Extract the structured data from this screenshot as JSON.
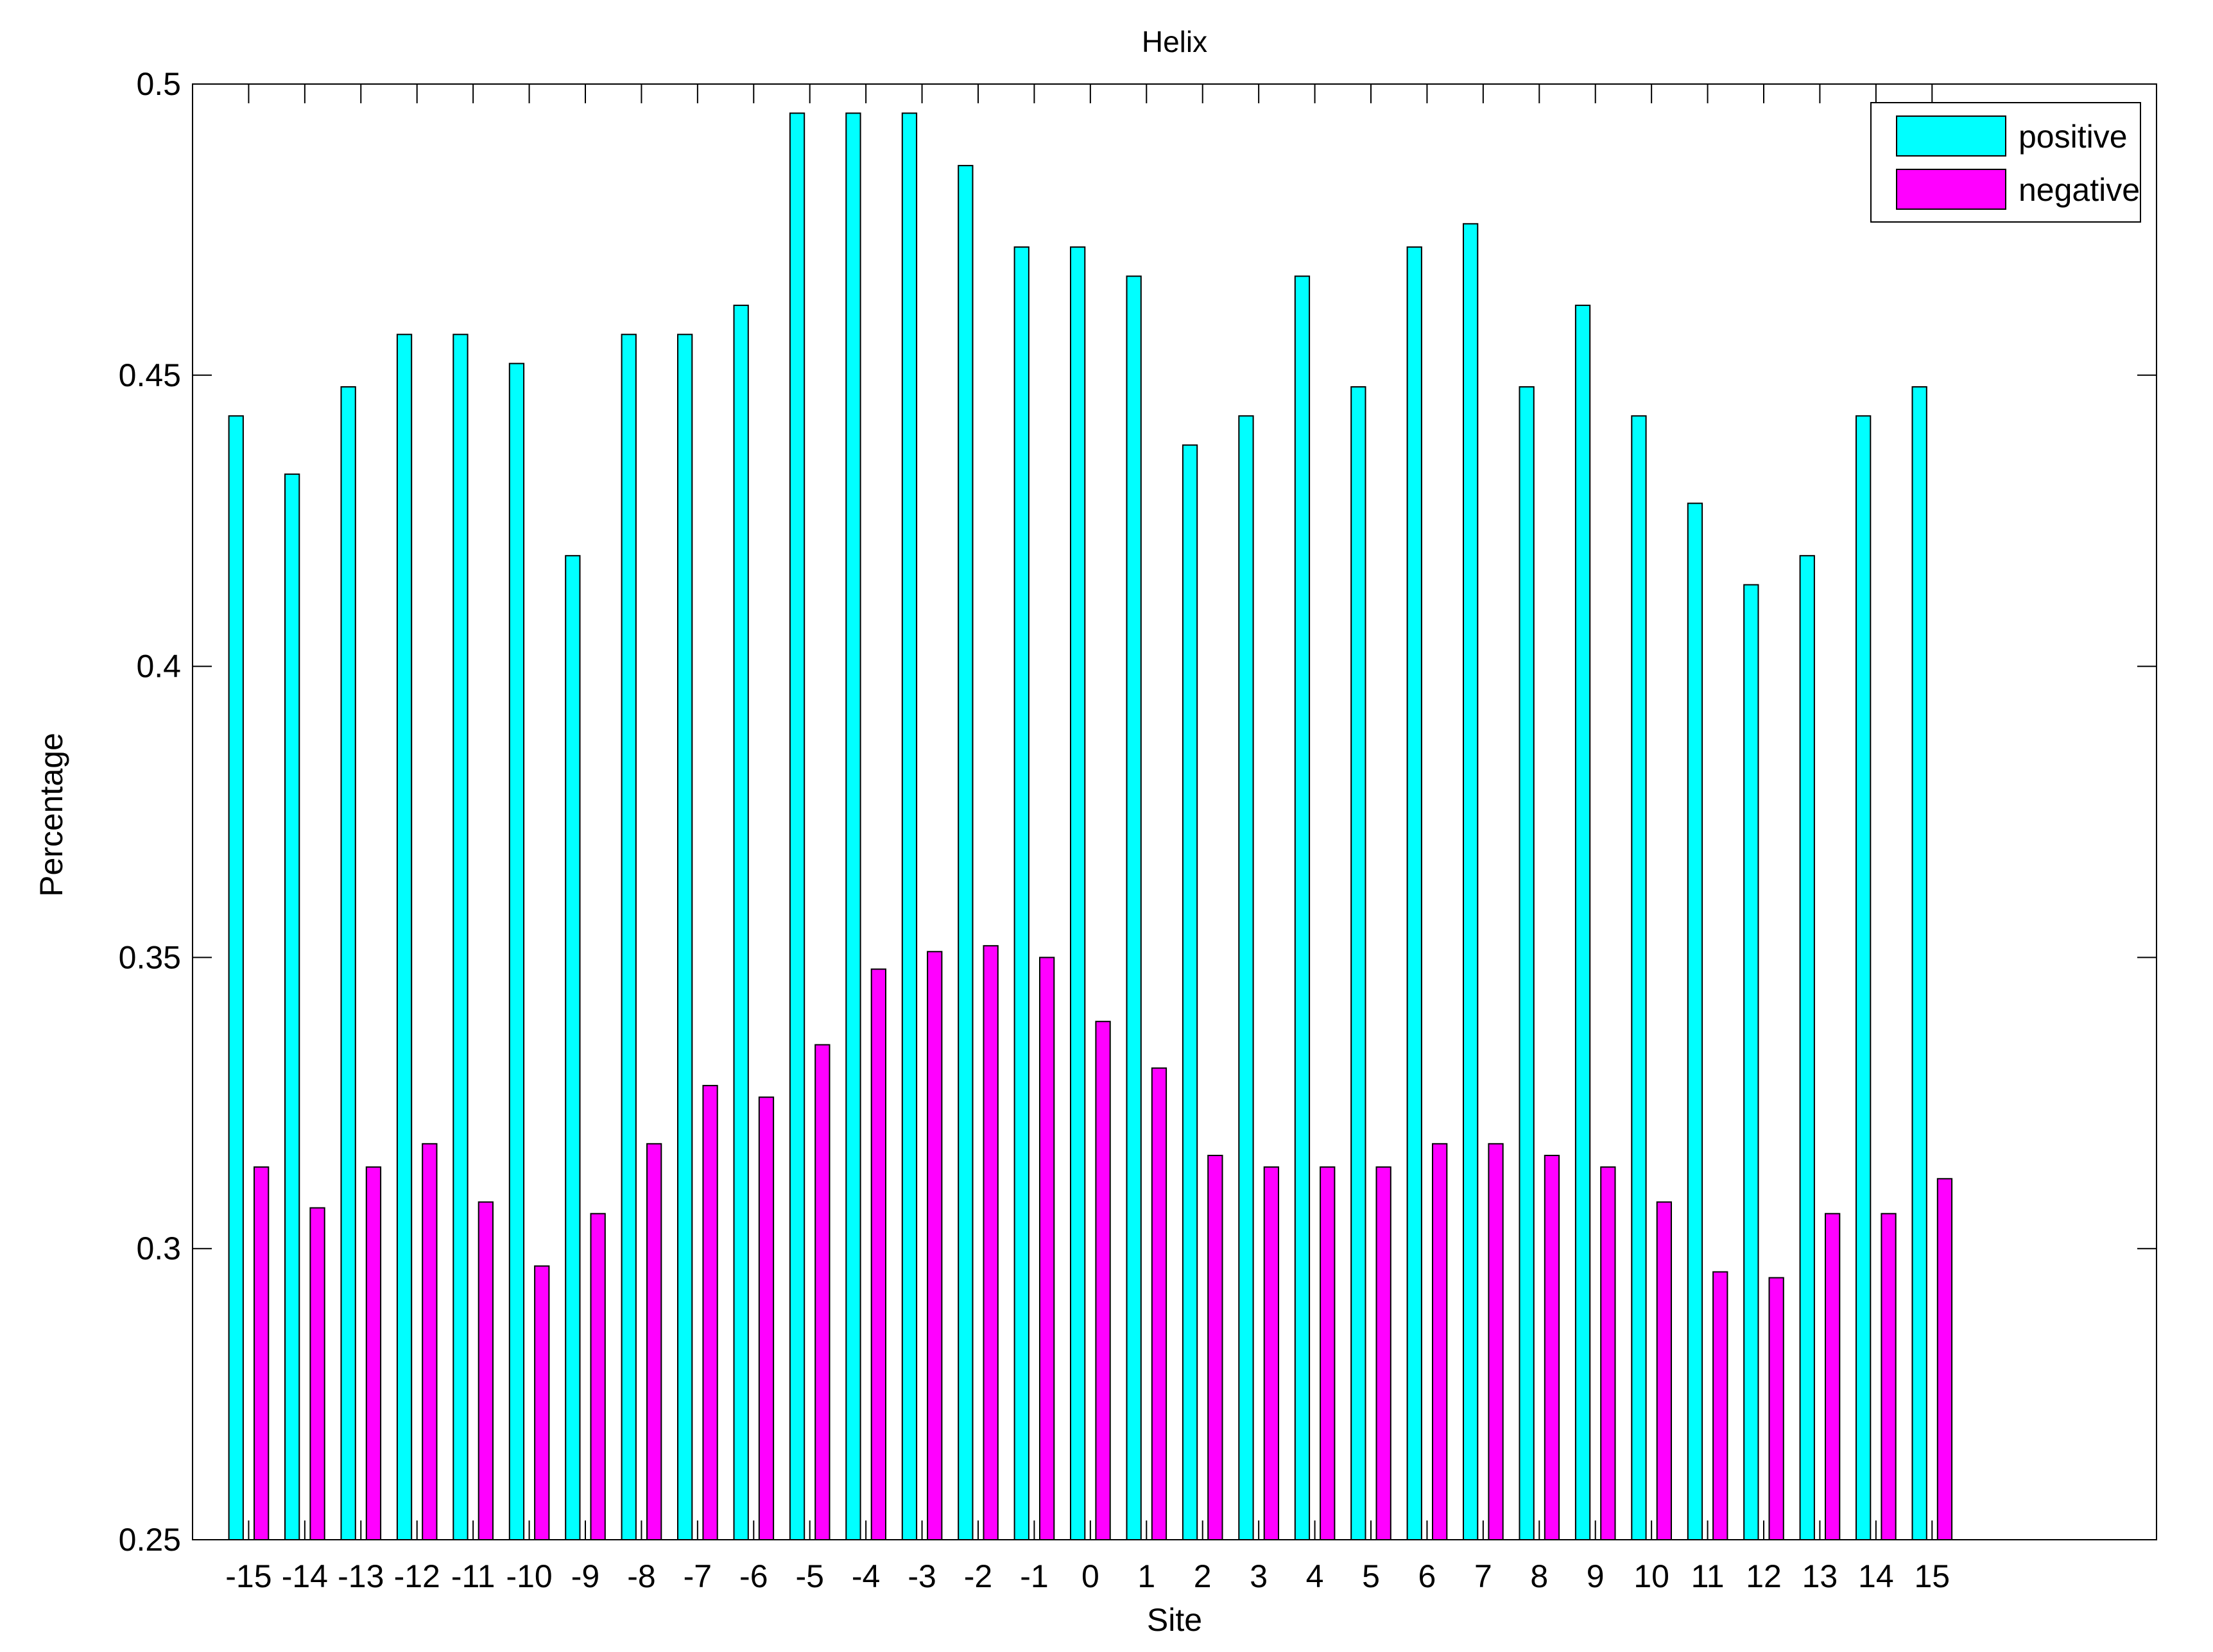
{
  "colors": {
    "positive": "#00ffff",
    "negative": "#ff00ff",
    "axis": "#000000",
    "background": "#ffffff"
  },
  "chart_data": {
    "type": "bar",
    "title": "Helix",
    "xlabel": "Site",
    "ylabel": "Percentage",
    "ylim": [
      0.25,
      0.5
    ],
    "yticks": [
      0.25,
      0.3,
      0.35,
      0.4,
      0.45,
      0.5
    ],
    "ytick_labels": [
      "0.25",
      "0.3",
      "0.35",
      "0.4",
      "0.45",
      "0.5"
    ],
    "xlim": [
      -16,
      19
    ],
    "grid": false,
    "legend_position": "top-right",
    "categories": [
      "-15",
      "-14",
      "-13",
      "-12",
      "-11",
      "-10",
      "-9",
      "-8",
      "-7",
      "-6",
      "-5",
      "-4",
      "-3",
      "-2",
      "-1",
      "0",
      "1",
      "2",
      "3",
      "4",
      "5",
      "6",
      "7",
      "8",
      "9",
      "10",
      "11",
      "12",
      "13",
      "14",
      "15"
    ],
    "series": [
      {
        "name": "positive",
        "color": "#00ffff",
        "values": [
          0.443,
          0.433,
          0.448,
          0.457,
          0.457,
          0.452,
          0.419,
          0.457,
          0.457,
          0.462,
          0.495,
          0.495,
          0.495,
          0.486,
          0.472,
          0.472,
          0.467,
          0.438,
          0.443,
          0.467,
          0.448,
          0.472,
          0.476,
          0.448,
          0.462,
          0.443,
          0.428,
          0.414,
          0.419,
          0.443,
          0.448
        ]
      },
      {
        "name": "negative",
        "color": "#ff00ff",
        "values": [
          0.314,
          0.307,
          0.314,
          0.318,
          0.308,
          0.297,
          0.306,
          0.318,
          0.328,
          0.326,
          0.335,
          0.348,
          0.351,
          0.352,
          0.35,
          0.339,
          0.331,
          0.316,
          0.314,
          0.314,
          0.314,
          0.318,
          0.318,
          0.316,
          0.314,
          0.308,
          0.296,
          0.295,
          0.306,
          0.306,
          0.312
        ]
      }
    ]
  }
}
